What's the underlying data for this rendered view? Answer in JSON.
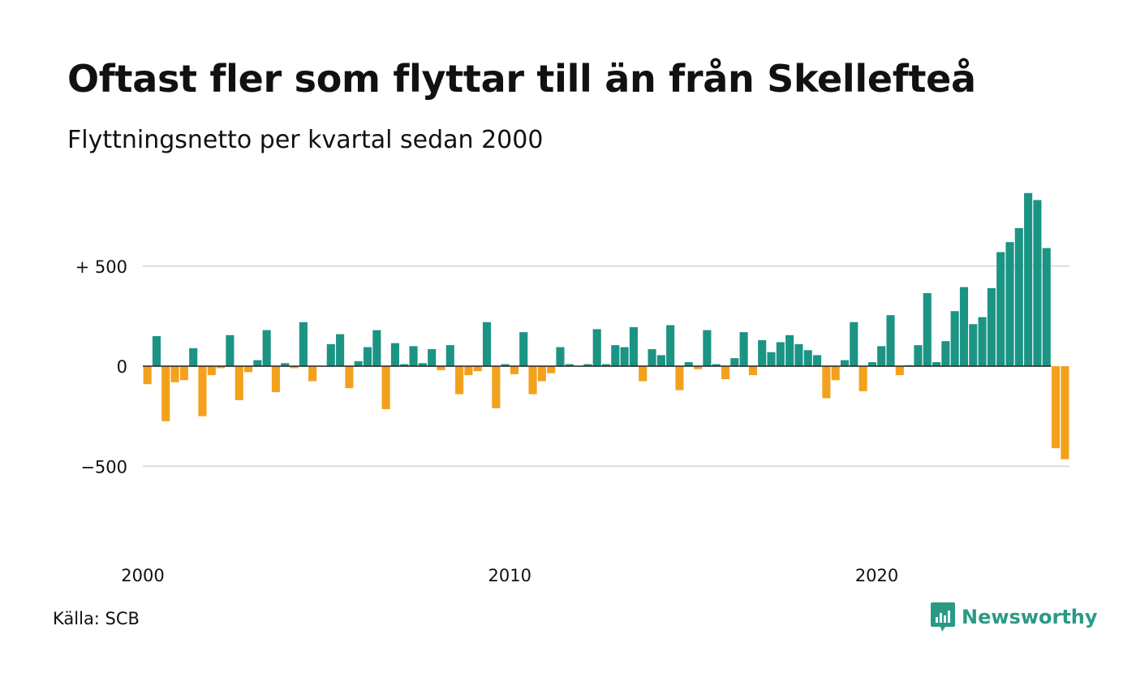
{
  "title": "Oftast fler som flyttar till än från Skellefteå",
  "subtitle": "Flyttningsnetto per kvartal sedan 2000",
  "source": "Källa: SCB",
  "brand": {
    "name": "Newsworthy",
    "icon": "newsworthy-logo-icon",
    "color": "#2a9a86"
  },
  "colors": {
    "positive": "#1b9484",
    "negative": "#f3a11d",
    "grid": "#dddddd",
    "zero": "#222222"
  },
  "chart_data": {
    "type": "bar",
    "title": "Oftast fler som flyttar till än från Skellefteå",
    "subtitle": "Flyttningsnetto per kvartal sedan 2000",
    "x_start": "2000 Q1",
    "x_unit": "quarter",
    "x_ticks": [
      {
        "label": "2000",
        "index": 0
      },
      {
        "label": "2010",
        "index": 40
      },
      {
        "label": "2020",
        "index": 80
      }
    ],
    "y_ticks": [
      {
        "label": "+ 500",
        "value": 500
      },
      {
        "label": "0",
        "value": 0
      },
      {
        "label": "−500",
        "value": -500
      }
    ],
    "ylim": [
      -940,
      940
    ],
    "grid": true,
    "values": [
      -90,
      150,
      -275,
      -80,
      -70,
      90,
      -250,
      -45,
      -10,
      155,
      -170,
      -30,
      30,
      180,
      -130,
      15,
      -10,
      220,
      -75,
      0,
      110,
      160,
      -110,
      25,
      95,
      180,
      -215,
      115,
      10,
      100,
      15,
      85,
      -20,
      105,
      -140,
      -45,
      -25,
      220,
      -210,
      10,
      -40,
      170,
      -140,
      -75,
      -35,
      95,
      10,
      0,
      10,
      185,
      10,
      105,
      95,
      195,
      -75,
      85,
      55,
      205,
      -120,
      20,
      -15,
      180,
      10,
      -65,
      40,
      170,
      -45,
      130,
      70,
      120,
      155,
      110,
      80,
      55,
      -160,
      -70,
      30,
      220,
      -125,
      20,
      100,
      255,
      -45,
      5,
      105,
      365,
      20,
      125,
      275,
      395,
      210,
      245,
      390,
      570,
      620,
      690,
      865,
      830,
      590,
      -410,
      -465
    ]
  }
}
